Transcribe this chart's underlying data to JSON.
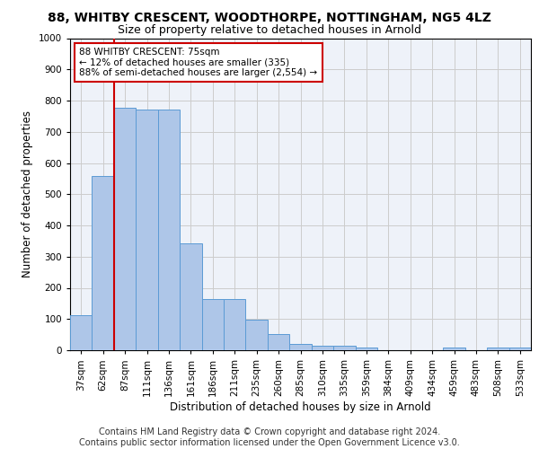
{
  "title_line1": "88, WHITBY CRESCENT, WOODTHORPE, NOTTINGHAM, NG5 4LZ",
  "title_line2": "Size of property relative to detached houses in Arnold",
  "xlabel": "Distribution of detached houses by size in Arnold",
  "ylabel": "Number of detached properties",
  "footer_line1": "Contains HM Land Registry data © Crown copyright and database right 2024.",
  "footer_line2": "Contains public sector information licensed under the Open Government Licence v3.0.",
  "categories": [
    "37sqm",
    "62sqm",
    "87sqm",
    "111sqm",
    "136sqm",
    "161sqm",
    "186sqm",
    "211sqm",
    "235sqm",
    "260sqm",
    "285sqm",
    "310sqm",
    "335sqm",
    "359sqm",
    "384sqm",
    "409sqm",
    "434sqm",
    "459sqm",
    "483sqm",
    "508sqm",
    "533sqm"
  ],
  "values": [
    113,
    557,
    778,
    770,
    770,
    343,
    165,
    165,
    98,
    53,
    20,
    15,
    15,
    10,
    0,
    0,
    0,
    10,
    0,
    10,
    10
  ],
  "bar_color": "#aec6e8",
  "bar_edge_color": "#5b9bd5",
  "vline_color": "#cc0000",
  "vline_x": 1.5,
  "annotation_text": "88 WHITBY CRESCENT: 75sqm\n← 12% of detached houses are smaller (335)\n88% of semi-detached houses are larger (2,554) →",
  "annotation_box_color": "#ffffff",
  "annotation_box_edge": "#cc0000",
  "ylim": [
    0,
    1000
  ],
  "yticks": [
    0,
    100,
    200,
    300,
    400,
    500,
    600,
    700,
    800,
    900,
    1000
  ],
  "grid_color": "#cccccc",
  "bg_color": "#eef2f9",
  "title_fontsize": 10,
  "subtitle_fontsize": 9,
  "axis_label_fontsize": 8.5,
  "tick_fontsize": 7.5,
  "footer_fontsize": 7,
  "annot_fontsize": 7.5
}
